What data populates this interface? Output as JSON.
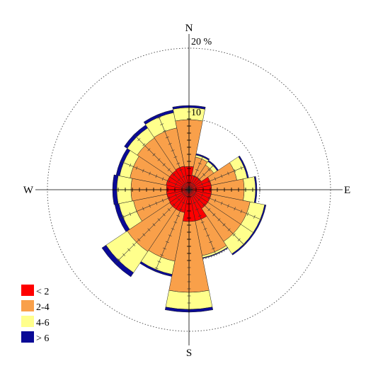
{
  "chart_data": {
    "type": "wind-rose",
    "directions": [
      "N",
      "NNE",
      "NE",
      "ENE",
      "E",
      "ESE",
      "SE",
      "SSE",
      "S",
      "SSW",
      "SW",
      "WSW",
      "W",
      "WNW",
      "NW",
      "NNW"
    ],
    "cardinal_labels": {
      "N": "N",
      "E": "E",
      "S": "S",
      "W": "W"
    },
    "unit_label": "%",
    "ring_labels": [
      "10",
      "20 %"
    ],
    "ring_values": [
      10,
      20
    ],
    "max_value": 20,
    "series": [
      {
        "name": "< 2",
        "color": "#ff0000",
        "values": [
          3.3,
          2.1,
          2.1,
          3.2,
          3.2,
          3.2,
          3.2,
          4.5,
          4.5,
          3.3,
          3.3,
          3.2,
          3.2,
          3.3,
          3.3,
          3.4
        ]
      },
      {
        "name": "2-4",
        "color": "#f9a04a",
        "values": [
          6.6,
          2.6,
          2.1,
          3.7,
          4.6,
          5.6,
          5.6,
          5.0,
          10.0,
          7.0,
          7.2,
          4.8,
          5.0,
          5.2,
          5.5,
          5.5
        ]
      },
      {
        "name": "4-6",
        "color": "#ffff8c",
        "values": [
          1.7,
          0.3,
          0.6,
          1.5,
          1.6,
          2.1,
          2.1,
          0.3,
          2.4,
          1.9,
          3.6,
          2.1,
          2.0,
          1.5,
          1.7,
          2.2
        ]
      },
      {
        "name": "> 6",
        "color": "#0a0a96",
        "values": [
          0.3,
          0.2,
          0.2,
          0.2,
          0.2,
          0.2,
          0.2,
          0.1,
          0.4,
          0.3,
          0.7,
          0.6,
          0.6,
          0.5,
          0.5,
          0.4
        ]
      }
    ],
    "grid": true
  }
}
